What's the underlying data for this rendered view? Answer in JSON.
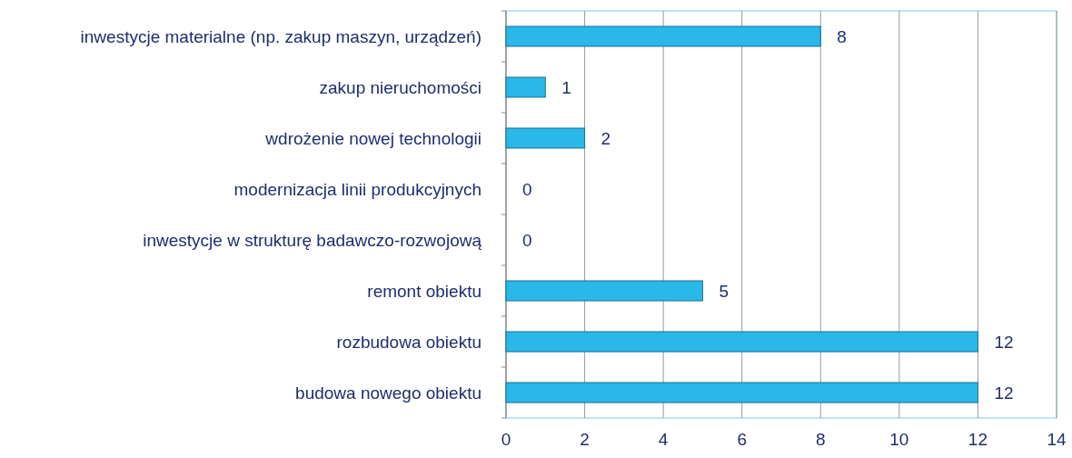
{
  "chart_data": {
    "type": "bar",
    "orientation": "horizontal",
    "categories": [
      "inwestycje materialne (np. zakup maszyn, urządzeń)",
      "zakup nieruchomości",
      "wdrożenie nowej technologii",
      "modernizacja linii produkcyjnych",
      "inwestycje w strukturę badawczo-rozwojową",
      "remont obiektu",
      "rozbudowa obiektu",
      "budowa nowego obiektu"
    ],
    "values": [
      8,
      1,
      2,
      0,
      0,
      5,
      12,
      12
    ],
    "color": "#29b8e8",
    "xlim": [
      0,
      14
    ],
    "xticks": [
      0,
      2,
      4,
      6,
      8,
      10,
      12,
      14
    ],
    "grid": "x",
    "data_labels": true
  }
}
